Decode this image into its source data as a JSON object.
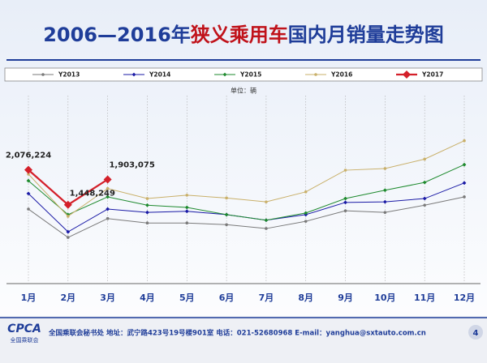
{
  "chart_data": {
    "type": "line",
    "title_parts": [
      "2006—2016年",
      "狭义乘用车",
      "国内月销量走势图"
    ],
    "title_colors": [
      "#1f3d99",
      "#c0121a",
      "#1f3d99"
    ],
    "unit_label": "单位：辆",
    "categories": [
      "1月",
      "2月",
      "3月",
      "4月",
      "5月",
      "6月",
      "7月",
      "8月",
      "9月",
      "10月",
      "11月",
      "12月"
    ],
    "series": [
      {
        "name": "Y2013",
        "color": "#7a7a7a",
        "marker": "circle",
        "values": [
          1370000,
          860000,
          1200000,
          1120000,
          1120000,
          1090000,
          1020000,
          1150000,
          1340000,
          1310000,
          1440000,
          1590000
        ]
      },
      {
        "name": "Y2014",
        "color": "#1a1aa6",
        "marker": "diamond",
        "values": [
          1650000,
          960000,
          1370000,
          1310000,
          1330000,
          1270000,
          1170000,
          1270000,
          1490000,
          1500000,
          1560000,
          1840000
        ]
      },
      {
        "name": "Y2015",
        "color": "#1e8a2e",
        "marker": "diamond",
        "values": [
          1880000,
          1270000,
          1590000,
          1440000,
          1400000,
          1270000,
          1170000,
          1300000,
          1560000,
          1710000,
          1850000,
          2170000
        ]
      },
      {
        "name": "Y2016",
        "color": "#c9b06a",
        "marker": "circle",
        "values": [
          2000000,
          1240000,
          1740000,
          1560000,
          1620000,
          1570000,
          1500000,
          1680000,
          2070000,
          2100000,
          2270000,
          2600000
        ]
      },
      {
        "name": "Y2017",
        "color": "#d4202a",
        "marker": "diamond-large",
        "values": [
          2076224,
          1448249,
          1903075,
          null,
          null,
          null,
          null,
          null,
          null,
          null,
          null,
          null
        ],
        "value_labels": [
          "2,076,224",
          "1,448,249",
          "1,903,075",
          null,
          null,
          null,
          null,
          null,
          null,
          null,
          null,
          null
        ]
      }
    ],
    "ylim": [
      0,
      3500000
    ],
    "footer": {
      "logo": "CPCA",
      "logo_sub": "全国乘联会",
      "text": "全国乘联会秘书处  地址：武宁路423号19号楼901室    电话：021-52680968   E-mail：yanghua@sxtauto.com.cn",
      "page": "4"
    }
  }
}
